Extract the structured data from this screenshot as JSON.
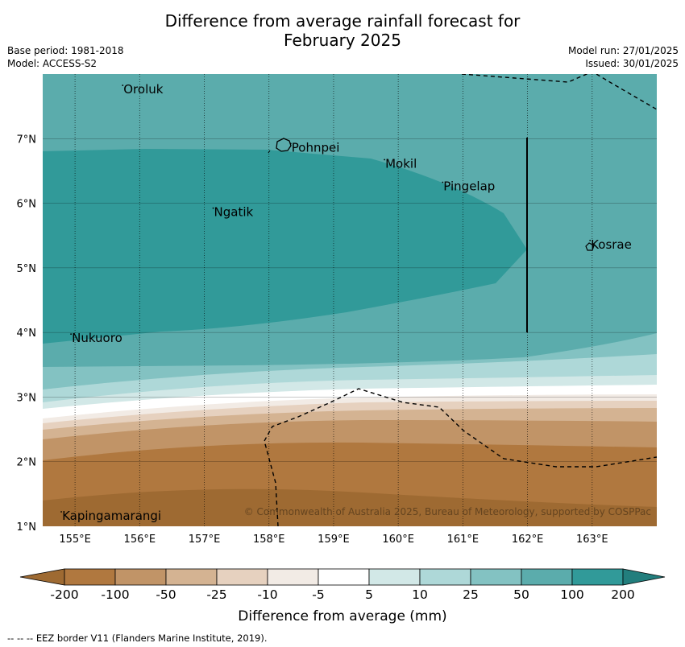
{
  "title_line1": "Difference from average rainfall forecast for",
  "title_line2": "February 2025",
  "base_period": "Base period: 1981-2018",
  "model": "Model: ACCESS-S2",
  "model_run": "Model run: 27/01/2025",
  "issued": "Issued: 30/01/2025",
  "copyright": "© Commonwealth of Australia 2025, Bureau of Meteorology, supported by COSPPac",
  "footer": "-- --  -- EEZ border V11 (Flanders Marine Institute, 2019).",
  "colorbar": {
    "title": "Difference from average (mm)",
    "labels": [
      "-200",
      "-100",
      "-50",
      "-25",
      "-10",
      "-5",
      "5",
      "10",
      "25",
      "50",
      "100",
      "200"
    ],
    "colors": [
      "#9e6a32",
      "#b0783f",
      "#c19467",
      "#d4b392",
      "#e6d1bf",
      "#f2ebe5",
      "#ffffff",
      "#d2e8e7",
      "#aed8d8",
      "#83c2c2",
      "#5bacac",
      "#319a99",
      "#227e7d"
    ]
  },
  "map": {
    "lon_range": [
      154.5,
      164.0
    ],
    "lat_range": [
      1.0,
      8.0
    ],
    "lon_ticks": [
      "155°E",
      "156°E",
      "157°E",
      "158°E",
      "159°E",
      "160°E",
      "161°E",
      "162°E",
      "163°E"
    ],
    "lat_ticks": [
      "1°N",
      "2°N",
      "3°N",
      "4°N",
      "5°N",
      "6°N",
      "7°N"
    ],
    "places": [
      {
        "name": "Oroluk",
        "lon": 155.75,
        "lat": 7.7
      },
      {
        "name": "Pohnpei",
        "lon": 158.35,
        "lat": 6.8
      },
      {
        "name": "Mokil",
        "lon": 159.8,
        "lat": 6.55
      },
      {
        "name": "Pingelap",
        "lon": 160.7,
        "lat": 6.2
      },
      {
        "name": "Ngatik",
        "lon": 157.15,
        "lat": 5.8
      },
      {
        "name": "Kosrae",
        "lon": 162.98,
        "lat": 5.3
      },
      {
        "name": "Nukuoro",
        "lon": 154.95,
        "lat": 3.85
      },
      {
        "name": "Kapingamarangi",
        "lon": 154.8,
        "lat": 1.1
      }
    ]
  }
}
